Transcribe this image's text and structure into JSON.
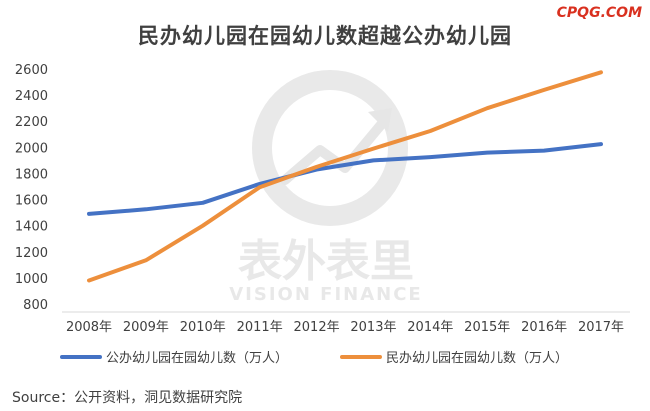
{
  "brand": "CPQG.COM",
  "watermark": {
    "text_cn": "表外表里",
    "text_en": "VISION FINANCE"
  },
  "source": "Source：公开资料，洞见数据研究院",
  "chart_data": {
    "type": "line",
    "title": "民办幼儿园在园幼儿数超越公办幼儿园",
    "xlabel": "",
    "ylabel": "",
    "categories": [
      "2008年",
      "2009年",
      "2010年",
      "2011年",
      "2012年",
      "2013年",
      "2014年",
      "2015年",
      "2016年",
      "2017年"
    ],
    "yticks": [
      800,
      1000,
      1200,
      1400,
      1600,
      1800,
      2000,
      2200,
      2400,
      2600
    ],
    "ylim": [
      800,
      2600
    ],
    "grid": false,
    "legend": "bottom",
    "series": [
      {
        "name": "公办幼儿园在园幼儿数（万人）",
        "color": "#4472c4",
        "values": [
          1490,
          1525,
          1575,
          1720,
          1830,
          1900,
          1925,
          1960,
          1975,
          2025
        ]
      },
      {
        "name": "民办幼儿园在园幼儿数（万人）",
        "color": "#ed8f3c",
        "values": [
          980,
          1135,
          1400,
          1695,
          1850,
          1990,
          2125,
          2300,
          2440,
          2575
        ]
      }
    ]
  }
}
